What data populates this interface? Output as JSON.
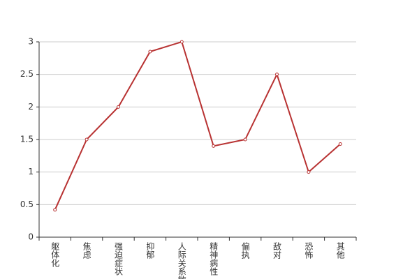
{
  "chart_data": {
    "type": "line",
    "categories": [
      "躯体化",
      "焦虑",
      "强迫症状",
      "抑郁",
      "人际关系敏感",
      "精神病性",
      "偏执",
      "敌对",
      "恐怖",
      "其他"
    ],
    "values": [
      0.42,
      1.5,
      2.0,
      2.85,
      3.0,
      1.4,
      1.5,
      2.5,
      1.0,
      1.43
    ],
    "color": "#b83232",
    "ylim": [
      0,
      3
    ],
    "yticks": [
      0,
      0.5,
      1,
      1.5,
      2,
      2.5,
      3
    ],
    "grid": true
  }
}
